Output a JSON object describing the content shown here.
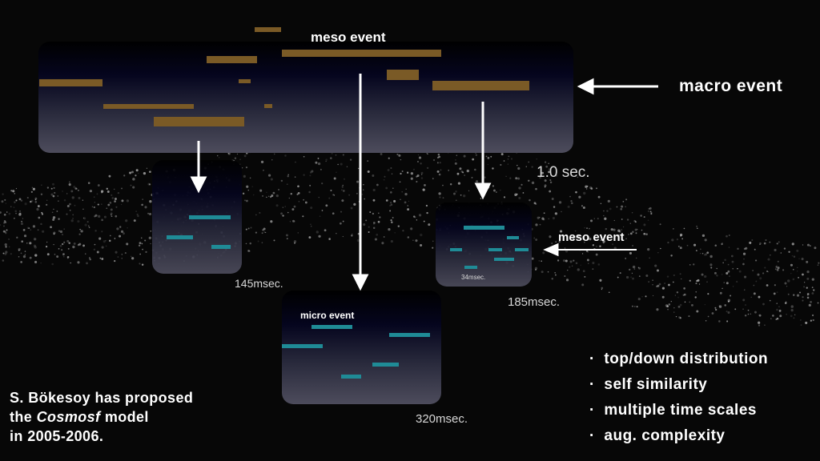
{
  "labels": {
    "meso_event_top": "meso event",
    "macro_event": "macro event",
    "duration_macro": "1.0 sec.",
    "duration_left": "145msec.",
    "duration_right": "185msec.",
    "duration_right_inner": "34msec.",
    "duration_micro": "320msec.",
    "meso_event_right": "meso event",
    "micro_event": "micro event"
  },
  "bullets": [
    "top/down distribution",
    "self similarity",
    "multiple time scales",
    "aug. complexity"
  ],
  "bullet_marker": "·",
  "credit": {
    "line1": "S. Bökesoy has proposed",
    "line2_prefix": "the ",
    "line2_model": "Cosmosf",
    "line2_suffix": " model",
    "line3": "in 2005-2006."
  },
  "colors": {
    "macro_bars": "#7a5a26",
    "micro_bars": "#1f8b96",
    "arrows": "#ffffff"
  }
}
